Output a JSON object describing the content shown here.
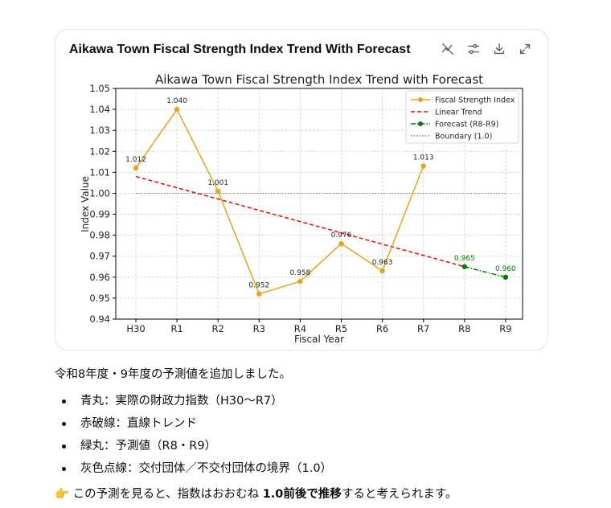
{
  "card": {
    "title": "Aikawa Town Fiscal Strength Index Trend With Forecast",
    "tools": [
      {
        "name": "hide-chart-icon"
      },
      {
        "name": "settings-sliders-icon"
      },
      {
        "name": "download-icon"
      },
      {
        "name": "expand-icon"
      }
    ]
  },
  "chart_data": {
    "type": "line",
    "title": "Aikawa Town Fiscal Strength Index Trend with Forecast",
    "xlabel": "Fiscal Year",
    "ylabel": "Index Value",
    "categories": [
      "H30",
      "R1",
      "R2",
      "R3",
      "R4",
      "R5",
      "R6",
      "R7",
      "R8",
      "R9"
    ],
    "ylim": [
      0.94,
      1.05
    ],
    "yticks": [
      0.94,
      0.95,
      0.96,
      0.97,
      0.98,
      0.99,
      1.0,
      1.01,
      1.02,
      1.03,
      1.04,
      1.05
    ],
    "ytick_labels": [
      "0.94",
      "0.95",
      "0.96",
      "0.97",
      "0.98",
      "0.99",
      "1.00",
      "1.01",
      "1.02",
      "1.03",
      "1.04",
      "1.05"
    ],
    "grid": true,
    "legend_position": "top-right",
    "series": [
      {
        "name": "Fiscal Strength Index",
        "color": "#e8a317",
        "style": "solid-marker",
        "x": [
          "H30",
          "R1",
          "R2",
          "R3",
          "R4",
          "R5",
          "R6",
          "R7"
        ],
        "values": [
          1.012,
          1.04,
          1.001,
          0.952,
          0.958,
          0.976,
          0.963,
          1.013
        ],
        "labels": [
          "1.012",
          "1.040",
          "1.001",
          "0.952",
          "0.958",
          "0.976",
          "0.963",
          "1.013"
        ]
      },
      {
        "name": "Linear Trend",
        "color": "#ff0000",
        "style": "dashed",
        "x": [
          "H30",
          "R8"
        ],
        "values": [
          1.008,
          0.965
        ]
      },
      {
        "name": "Forecast (R8-R9)",
        "color": "#008000",
        "style": "dashdot-marker",
        "x": [
          "R8",
          "R9"
        ],
        "values": [
          0.965,
          0.96
        ],
        "labels": [
          "0.965",
          "0.960"
        ]
      },
      {
        "name": "Boundary (1.0)",
        "color": "#808080",
        "style": "dotted",
        "x": [
          "H30",
          "R9"
        ],
        "values": [
          1.0,
          1.0
        ]
      }
    ]
  },
  "text": {
    "intro": "令和8年度・9年度の予測値を追加しました。",
    "bullets": [
      "青丸：実際の財政力指数（H30〜R7）",
      "赤破線：直線トレンド",
      "緑丸：予測値（R8・R9）",
      "灰色点線：交付団体／不交付団体の境界（1.0）"
    ],
    "conclusion_prefix": "👉 この予測を見ると、指数はおおむね ",
    "conclusion_bold": "1.0前後で推移",
    "conclusion_suffix": "すると考えられます。"
  }
}
